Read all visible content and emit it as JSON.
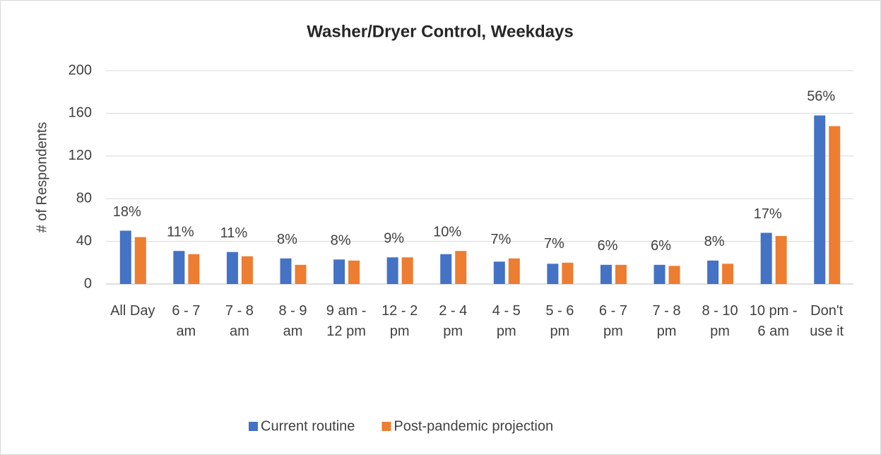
{
  "chart_data": {
    "type": "bar",
    "title": "Washer/Dryer Control, Weekdays",
    "y_label": "# of Respondents",
    "categories": [
      "All Day",
      "6 - 7 am",
      "7 - 8 am",
      "8 - 9 am",
      "9 am - 12 pm",
      "12 - 2 pm",
      "2 - 4 pm",
      "4 - 5 pm",
      "5 - 6 pm",
      "6 - 7 pm",
      "7 - 8 pm",
      "8 - 10 pm",
      "10 pm - 6 am",
      "Don't use it"
    ],
    "series": [
      {
        "name": "Current routine",
        "color": "#4472c4",
        "values": [
          50,
          31,
          30,
          24,
          23,
          25,
          28,
          21,
          19,
          18,
          18,
          22,
          48,
          158
        ]
      },
      {
        "name": "Post-pandemic projection",
        "color": "#ed7d31",
        "values": [
          44,
          28,
          26,
          18,
          22,
          25,
          31,
          24,
          20,
          18,
          17,
          19,
          45,
          148
        ]
      }
    ],
    "annotations": [
      "18%",
      "11%",
      "11%",
      "8%",
      "8%",
      "9%",
      "10%",
      "7%",
      "7%",
      "6%",
      "6%",
      "8%",
      "17%",
      "56%"
    ],
    "ylim": [
      0,
      200
    ],
    "yticks": [
      0,
      40,
      80,
      120,
      160,
      200
    ],
    "grid": true,
    "legend": "bottom"
  }
}
